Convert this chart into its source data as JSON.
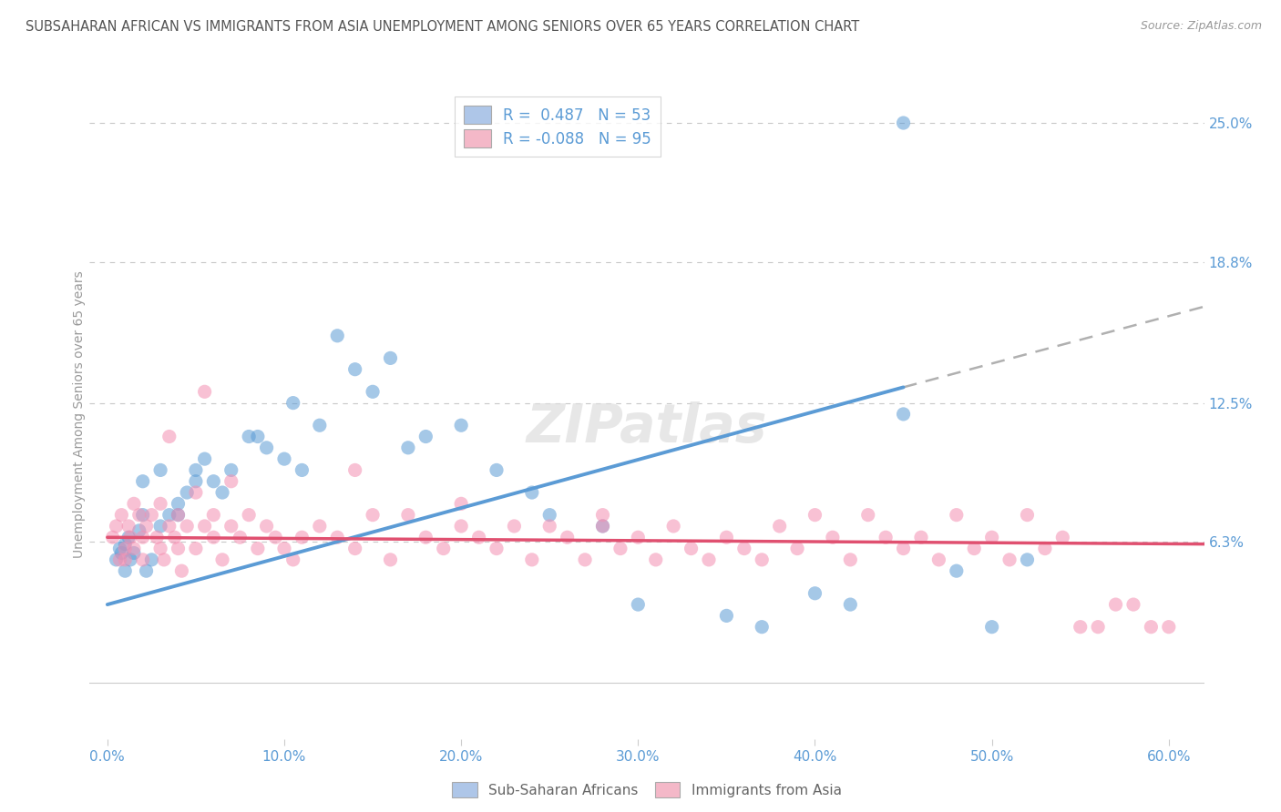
{
  "title": "SUBSAHARAN AFRICAN VS IMMIGRANTS FROM ASIA UNEMPLOYMENT AMONG SENIORS OVER 65 YEARS CORRELATION CHART",
  "source": "Source: ZipAtlas.com",
  "ylabel": "Unemployment Among Seniors over 65 years",
  "xlabel_ticks": [
    "0.0%",
    "10.0%",
    "20.0%",
    "30.0%",
    "40.0%",
    "50.0%",
    "60.0%"
  ],
  "xlabel_vals": [
    0.0,
    10.0,
    20.0,
    30.0,
    40.0,
    50.0,
    60.0
  ],
  "ylabel_ticks_pct": [
    6.3,
    12.5,
    18.8,
    25.0
  ],
  "ylabel_labels": [
    "6.3%",
    "12.5%",
    "18.8%",
    "25.0%"
  ],
  "xlim": [
    -1.0,
    62.0
  ],
  "ylim": [
    -2.5,
    26.5
  ],
  "ymin_display": 0.0,
  "legend_r1": "R =  0.487   N = 53",
  "legend_r2": "R = -0.088   N = 95",
  "bottom_legend": [
    "Sub-Saharan Africans",
    "Immigrants from Asia"
  ],
  "blue_color": "#5b9bd5",
  "pink_color": "#f48fb1",
  "blue_fill": "#aec6e8",
  "pink_fill": "#f4b8c8",
  "background_color": "#ffffff",
  "grid_color": "#c8c8c8",
  "title_color": "#555555",
  "axis_label_color": "#5b9bd5",
  "blue_line_x": [
    0.0,
    45.0
  ],
  "blue_line_y": [
    3.5,
    13.2
  ],
  "dash_line_x": [
    45.0,
    62.0
  ],
  "dash_line_y": [
    13.2,
    16.8
  ],
  "pink_line_x": [
    0.0,
    62.0
  ],
  "pink_line_y": [
    6.5,
    6.2
  ],
  "blue_scatter_x": [
    0.5,
    0.7,
    0.8,
    1.0,
    1.0,
    1.2,
    1.3,
    1.5,
    1.8,
    2.0,
    2.2,
    2.5,
    3.0,
    3.5,
    4.0,
    4.5,
    5.0,
    5.5,
    6.0,
    7.0,
    8.0,
    9.0,
    10.0,
    11.0,
    12.0,
    14.0,
    15.0,
    16.0,
    18.0,
    20.0,
    22.0,
    24.0,
    25.0,
    28.0,
    30.0,
    35.0,
    37.0,
    40.0,
    42.0,
    45.0,
    48.0,
    50.0,
    52.0,
    2.0,
    3.0,
    4.0,
    5.0,
    6.5,
    8.5,
    10.5,
    13.0,
    17.0,
    45.0
  ],
  "blue_scatter_y": [
    5.5,
    6.0,
    5.8,
    6.2,
    5.0,
    6.5,
    5.5,
    5.8,
    6.8,
    7.5,
    5.0,
    5.5,
    7.0,
    7.5,
    8.0,
    8.5,
    9.5,
    10.0,
    9.0,
    9.5,
    11.0,
    10.5,
    10.0,
    9.5,
    11.5,
    14.0,
    13.0,
    14.5,
    11.0,
    11.5,
    9.5,
    8.5,
    7.5,
    7.0,
    3.5,
    3.0,
    2.5,
    4.0,
    3.5,
    12.0,
    5.0,
    2.5,
    5.5,
    9.0,
    9.5,
    7.5,
    9.0,
    8.5,
    11.0,
    12.5,
    15.5,
    10.5,
    25.0
  ],
  "pink_scatter_x": [
    0.3,
    0.5,
    0.7,
    0.8,
    1.0,
    1.0,
    1.2,
    1.3,
    1.5,
    1.5,
    1.8,
    2.0,
    2.0,
    2.2,
    2.5,
    2.8,
    3.0,
    3.0,
    3.2,
    3.5,
    3.8,
    4.0,
    4.0,
    4.2,
    4.5,
    5.0,
    5.0,
    5.5,
    6.0,
    6.0,
    6.5,
    7.0,
    7.5,
    8.0,
    8.5,
    9.0,
    9.5,
    10.0,
    10.5,
    11.0,
    12.0,
    13.0,
    14.0,
    15.0,
    16.0,
    17.0,
    18.0,
    19.0,
    20.0,
    20.0,
    21.0,
    22.0,
    23.0,
    24.0,
    25.0,
    26.0,
    27.0,
    28.0,
    29.0,
    30.0,
    31.0,
    32.0,
    33.0,
    34.0,
    35.0,
    36.0,
    37.0,
    38.0,
    39.0,
    40.0,
    41.0,
    42.0,
    43.0,
    44.0,
    45.0,
    46.0,
    47.0,
    48.0,
    49.0,
    50.0,
    51.0,
    52.0,
    53.0,
    54.0,
    55.0,
    56.0,
    57.0,
    58.0,
    59.0,
    60.0,
    3.5,
    5.5,
    7.0,
    14.0,
    28.0
  ],
  "pink_scatter_y": [
    6.5,
    7.0,
    5.5,
    7.5,
    6.0,
    5.5,
    7.0,
    6.5,
    8.0,
    6.0,
    7.5,
    5.5,
    6.5,
    7.0,
    7.5,
    6.5,
    6.0,
    8.0,
    5.5,
    7.0,
    6.5,
    6.0,
    7.5,
    5.0,
    7.0,
    6.0,
    8.5,
    7.0,
    6.5,
    7.5,
    5.5,
    7.0,
    6.5,
    7.5,
    6.0,
    7.0,
    6.5,
    6.0,
    5.5,
    6.5,
    7.0,
    6.5,
    6.0,
    7.5,
    5.5,
    7.5,
    6.5,
    6.0,
    7.0,
    8.0,
    6.5,
    6.0,
    7.0,
    5.5,
    7.0,
    6.5,
    5.5,
    7.0,
    6.0,
    6.5,
    5.5,
    7.0,
    6.0,
    5.5,
    6.5,
    6.0,
    5.5,
    7.0,
    6.0,
    7.5,
    6.5,
    5.5,
    7.5,
    6.5,
    6.0,
    6.5,
    5.5,
    7.5,
    6.0,
    6.5,
    5.5,
    7.5,
    6.0,
    6.5,
    2.5,
    2.5,
    3.5,
    3.5,
    2.5,
    2.5,
    11.0,
    13.0,
    9.0,
    9.5,
    7.5
  ]
}
